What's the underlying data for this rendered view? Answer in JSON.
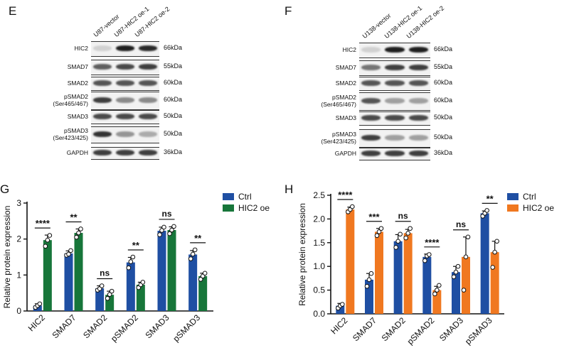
{
  "blots": [
    {
      "letter": "E",
      "lanes": [
        "U87-vector",
        "U87-HIC2 oe-1",
        "U87-HIC2 oe-2"
      ],
      "rows": [
        {
          "protein": "HIC2",
          "kda": "66kDa",
          "bands": [
            0.12,
            0.95,
            0.9
          ]
        },
        {
          "protein": "SMAD7",
          "kda": "55kDa",
          "bands": [
            0.65,
            0.75,
            0.8
          ]
        },
        {
          "protein": "SMAD2",
          "kda": "60kDa",
          "bands": [
            0.7,
            0.7,
            0.7
          ]
        },
        {
          "protein": "pSMAD2\n(Ser465/467)",
          "kda": "60kDa",
          "bands": [
            0.8,
            0.45,
            0.45
          ]
        },
        {
          "protein": "SMAD3",
          "kda": "50kDa",
          "bands": [
            0.75,
            0.75,
            0.75
          ]
        },
        {
          "protein": "pSMAD3\n(Ser423/425)",
          "kda": "50kDa",
          "bands": [
            0.85,
            0.4,
            0.3
          ]
        },
        {
          "protein": "GAPDH",
          "kda": "36kDa",
          "bands": [
            0.8,
            0.8,
            0.8
          ]
        }
      ]
    },
    {
      "letter": "F",
      "lanes": [
        "U138-vector",
        "U138-HIC2 oe-1",
        "U138-HIC2 oe-2"
      ],
      "rows": [
        {
          "protein": "HIC2",
          "kda": "66kDa",
          "bands": [
            0.12,
            0.95,
            0.95
          ]
        },
        {
          "protein": "SMAD7",
          "kda": "55kDa",
          "bands": [
            0.55,
            0.8,
            0.8
          ]
        },
        {
          "protein": "SMAD2",
          "kda": "60kDa",
          "bands": [
            0.7,
            0.7,
            0.7
          ]
        },
        {
          "protein": "pSMAD2\n(Ser465/467)",
          "kda": "60kDa",
          "bands": [
            0.7,
            0.35,
            0.35
          ]
        },
        {
          "protein": "SMAD3",
          "kda": "50kDa",
          "bands": [
            0.75,
            0.75,
            0.75
          ]
        },
        {
          "protein": "pSMAD3\n(Ser423/425)",
          "kda": "50kDa",
          "bands": [
            0.8,
            0.35,
            0.35
          ]
        },
        {
          "protein": "GAPDH",
          "kda": "36kDa",
          "bands": [
            0.8,
            0.8,
            0.8
          ]
        }
      ]
    }
  ],
  "chart_data": [
    {
      "letter": "G",
      "type": "bar",
      "ylabel": "Relative protein expression",
      "ylim": [
        0,
        3
      ],
      "yticks": [
        "0",
        "1",
        "2",
        "3"
      ],
      "categories": [
        "HIC2",
        "SMAD7",
        "SMAD2",
        "pSMAD2",
        "SMAD3",
        "pSMAD3"
      ],
      "series": [
        {
          "name": "Ctrl",
          "color": "#1f4fa3",
          "values": [
            0.15,
            1.6,
            0.63,
            1.35,
            2.23,
            1.57
          ],
          "errors": [
            0.05,
            0.07,
            0.07,
            0.14,
            0.1,
            0.11
          ],
          "points": [
            [
              0.1,
              0.15,
              0.2
            ],
            [
              1.55,
              1.58,
              1.68
            ],
            [
              0.58,
              0.62,
              0.7
            ],
            [
              1.2,
              1.37,
              1.5
            ],
            [
              2.12,
              2.24,
              2.33
            ],
            [
              1.45,
              1.58,
              1.7
            ]
          ]
        },
        {
          "name": "HIC2 oe",
          "color": "#17763a",
          "values": [
            1.97,
            2.17,
            0.45,
            0.73,
            2.25,
            0.97
          ],
          "errors": [
            0.14,
            0.11,
            0.1,
            0.07,
            0.09,
            0.08
          ],
          "points": [
            [
              1.8,
              1.97,
              2.1
            ],
            [
              2.05,
              2.17,
              2.28
            ],
            [
              0.35,
              0.46,
              0.55
            ],
            [
              0.65,
              0.73,
              0.8
            ],
            [
              2.15,
              2.25,
              2.35
            ],
            [
              0.88,
              0.97,
              1.05
            ]
          ]
        }
      ],
      "significance": [
        "****",
        "**",
        "ns",
        "**",
        "ns",
        "**"
      ],
      "legend": "top-right"
    },
    {
      "letter": "H",
      "type": "bar",
      "ylabel": "Relative protein expression",
      "ylim": [
        0,
        2.5
      ],
      "yticks": [
        "0.0",
        "0.5",
        "1.0",
        "1.5",
        "2.0",
        "2.5"
      ],
      "categories": [
        "HIC2",
        "SMAD7",
        "SMAD2",
        "pSMAD2",
        "SMAD3",
        "pSMAD3"
      ],
      "series": [
        {
          "name": "Ctrl",
          "color": "#1f4fa3",
          "values": [
            0.17,
            0.72,
            1.53,
            1.2,
            0.88,
            2.12
          ],
          "errors": [
            0.05,
            0.13,
            0.14,
            0.06,
            0.12,
            0.05
          ],
          "points": [
            [
              0.12,
              0.17,
              0.2
            ],
            [
              0.58,
              0.72,
              0.85
            ],
            [
              1.4,
              1.53,
              1.68
            ],
            [
              1.12,
              1.22,
              1.25
            ],
            [
              0.78,
              0.88,
              1.0
            ],
            [
              2.06,
              2.12,
              2.18
            ]
          ]
        },
        {
          "name": "HIC2 oe",
          "color": "#f07820",
          "values": [
            2.2,
            1.73,
            1.7,
            0.5,
            1.2,
            1.3
          ],
          "errors": [
            0.05,
            0.07,
            0.08,
            0.08,
            0.42,
            0.23
          ],
          "points": [
            [
              2.15,
              2.2,
              2.26
            ],
            [
              1.65,
              1.73,
              1.8
            ],
            [
              1.6,
              1.7,
              1.8
            ],
            [
              0.42,
              0.5,
              0.6
            ],
            [
              0.5,
              1.2,
              1.62
            ],
            [
              0.98,
              1.3,
              1.53
            ]
          ]
        }
      ],
      "significance": [
        "****",
        "***",
        "ns",
        "****",
        "ns",
        "**"
      ],
      "legend": "top-right"
    }
  ]
}
